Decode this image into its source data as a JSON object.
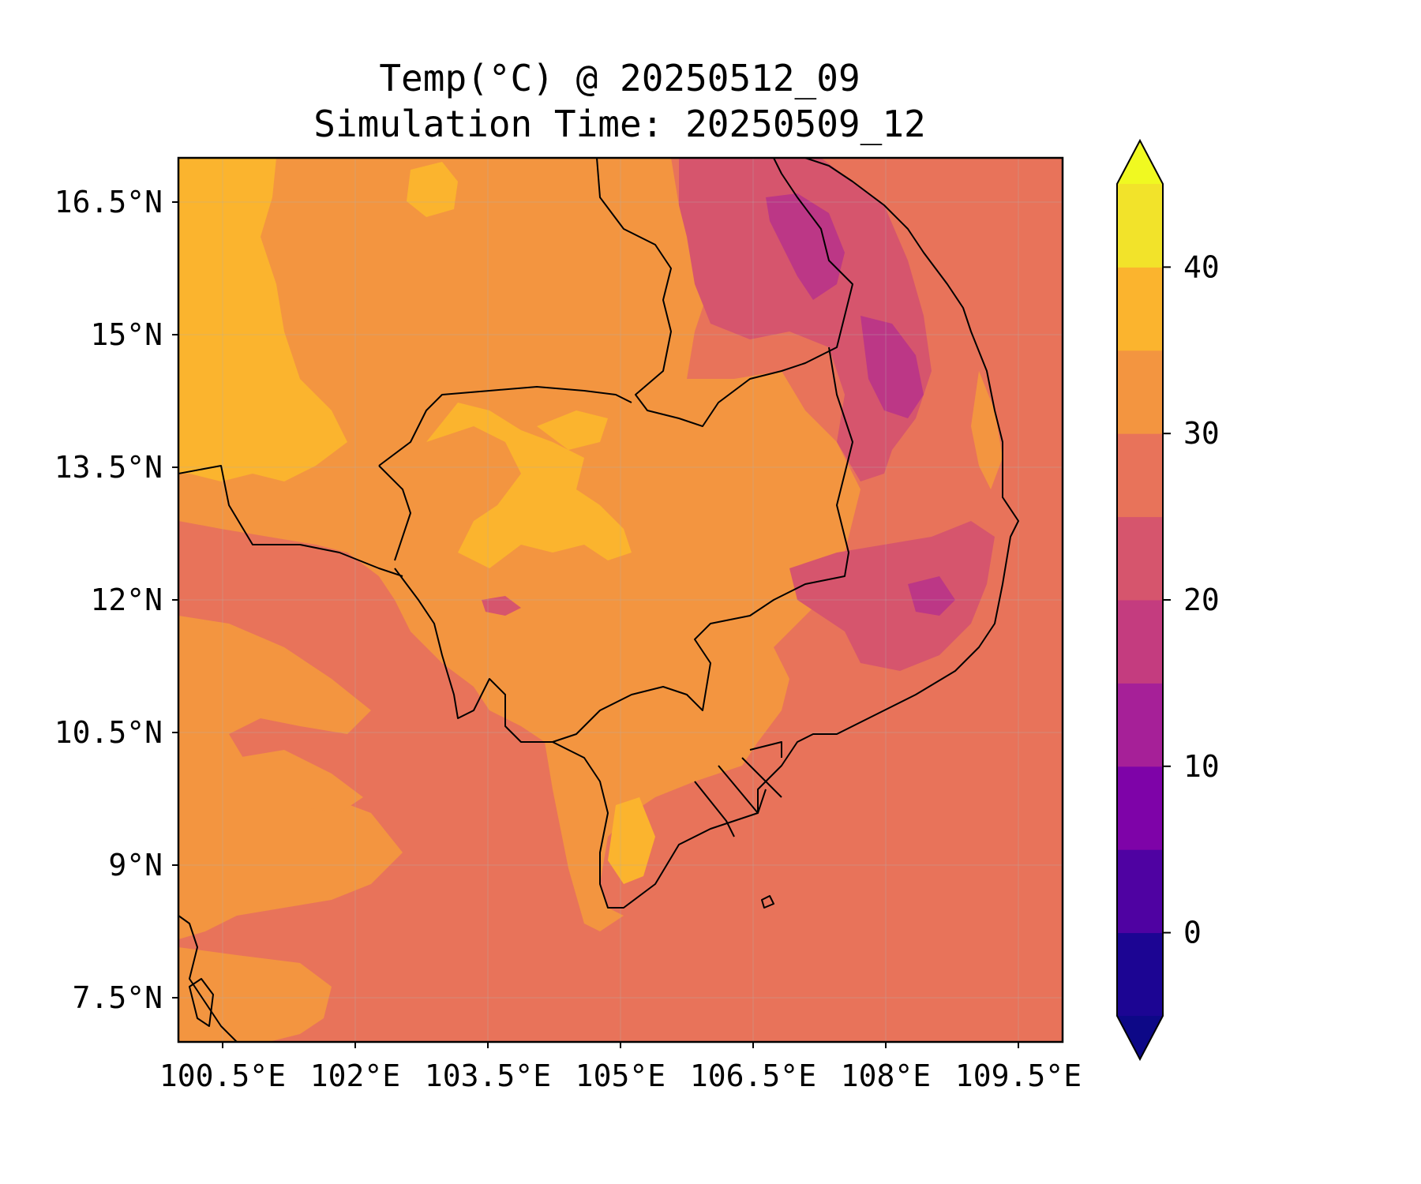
{
  "title": {
    "line1": "Temp(°C) @ 20250512_09",
    "line2": "Simulation Time: 20250509_12"
  },
  "map": {
    "lon_range": [
      100.0,
      110.0
    ],
    "lat_range": [
      7.0,
      17.0
    ],
    "x_ticks": [
      {
        "value": 100.5,
        "label": "100.5°E"
      },
      {
        "value": 102.0,
        "label": "102°E"
      },
      {
        "value": 103.5,
        "label": "103.5°E"
      },
      {
        "value": 105.0,
        "label": "105°E"
      },
      {
        "value": 106.5,
        "label": "106.5°E"
      },
      {
        "value": 108.0,
        "label": "108°E"
      },
      {
        "value": 109.5,
        "label": "109.5°E"
      }
    ],
    "y_ticks": [
      {
        "value": 16.5,
        "label": "16.5°N"
      },
      {
        "value": 15.0,
        "label": "15°N"
      },
      {
        "value": 13.5,
        "label": "13.5°N"
      },
      {
        "value": 12.0,
        "label": "12°N"
      },
      {
        "value": 10.5,
        "label": "10.5°N"
      },
      {
        "value": 9.0,
        "label": "9°N"
      },
      {
        "value": 7.5,
        "label": "7.5°N"
      }
    ],
    "colors": {
      "band_25_30": "#e8735a",
      "band_30_35": "#f39540",
      "band_35_40": "#fbb42e",
      "band_20_25": "#d6556d",
      "band_15_20": "#bc3786",
      "grid": "#b0b0b0"
    }
  },
  "colorbar": {
    "min": -5,
    "max": 45,
    "step": 5,
    "extend": "both",
    "under_color": "#0d0887",
    "over_color": "#f0f921",
    "colors": [
      "#1c0593",
      "#4f02a2",
      "#7e03a8",
      "#a62098",
      "#c43c7f",
      "#d6556d",
      "#e8735a",
      "#f39540",
      "#fbb42e",
      "#f2e32a"
    ],
    "ticks": [
      {
        "value": 0,
        "label": "0"
      },
      {
        "value": 10,
        "label": "10"
      },
      {
        "value": 20,
        "label": "20"
      },
      {
        "value": 30,
        "label": "30"
      },
      {
        "value": 40,
        "label": "40"
      }
    ]
  }
}
